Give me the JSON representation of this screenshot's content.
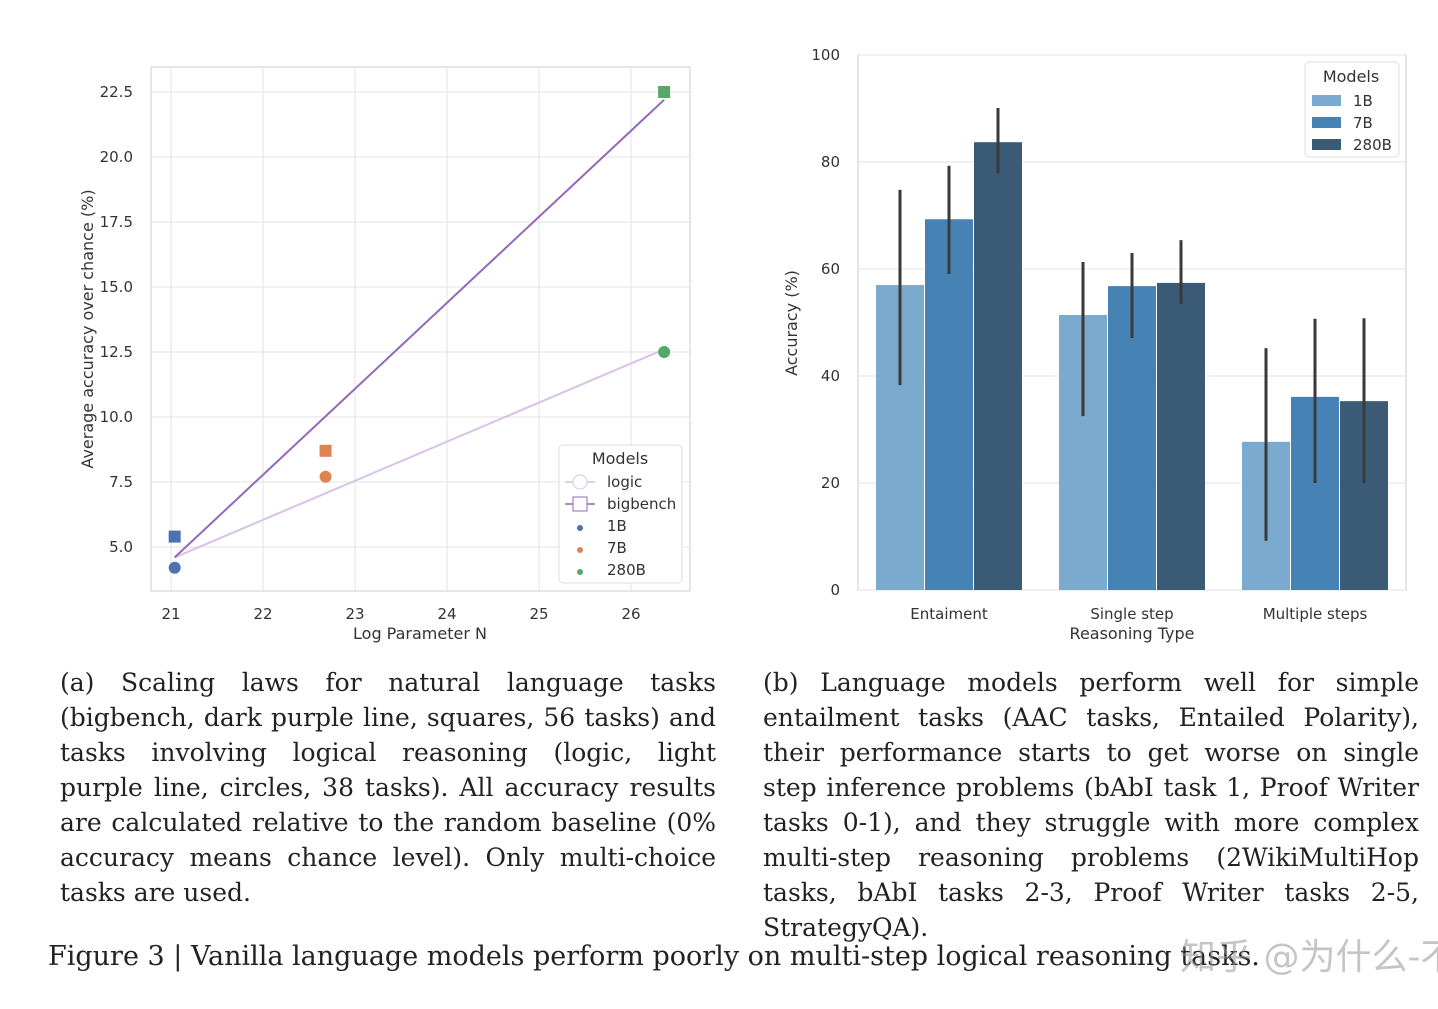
{
  "chart_data": [
    {
      "type": "scatter+line",
      "xlabel": "Log Parameter N",
      "ylabel": "Average accuracy over chance (%)",
      "xlim": [
        20.8,
        26.65
      ],
      "ylim": [
        3.2,
        23.4
      ],
      "xticks": [
        21,
        22,
        23,
        24,
        25,
        26
      ],
      "yticks": [
        "5.0",
        "7.5",
        "10.0",
        "12.5",
        "15.0",
        "17.5",
        "20.0",
        "22.5"
      ],
      "grid": true,
      "legend": {
        "title": "Models",
        "placement": "lower-right",
        "entries": [
          "logic",
          "bigbench",
          "1B",
          "7B",
          "280B"
        ]
      },
      "colors": {
        "1B": "#4c72b0",
        "7B": "#dd8452",
        "280B": "#55a868",
        "logic": "#d9c2e6",
        "bigbench": "#9467bd"
      },
      "points": [
        {
          "model": "1B",
          "task": "logic",
          "x": 21.04,
          "y": 4.2
        },
        {
          "model": "1B",
          "task": "bigbench",
          "x": 21.04,
          "y": 5.4
        },
        {
          "model": "7B",
          "task": "logic",
          "x": 22.68,
          "y": 7.7
        },
        {
          "model": "7B",
          "task": "bigbench",
          "x": 22.68,
          "y": 8.7
        },
        {
          "model": "280B",
          "task": "logic",
          "x": 26.36,
          "y": 12.5
        },
        {
          "model": "280B",
          "task": "bigbench",
          "x": 26.36,
          "y": 22.5
        }
      ],
      "lines": [
        {
          "name": "logic",
          "x": [
            21.04,
            26.36
          ],
          "y": [
            4.6,
            12.6
          ]
        },
        {
          "name": "bigbench",
          "x": [
            21.04,
            26.36
          ],
          "y": [
            4.6,
            22.2
          ]
        }
      ]
    },
    {
      "type": "bar",
      "xlabel": "Reasoning Type",
      "ylabel": "Accuracy (%)",
      "ylim": [
        0,
        100
      ],
      "yticks": [
        0,
        20,
        40,
        60,
        80,
        100
      ],
      "grid": true,
      "categories": [
        "Entaiment",
        "Single step",
        "Multiple steps"
      ],
      "legend": {
        "title": "Models",
        "placement": "top-right"
      },
      "series": [
        {
          "name": "1B",
          "color": "#7aaacd",
          "values": [
            57.0,
            51.4,
            27.7
          ],
          "err_low": [
            38.3,
            32.5,
            9.2
          ],
          "err_high": [
            74.8,
            61.3,
            45.2
          ]
        },
        {
          "name": "7B",
          "color": "#4682b4",
          "values": [
            69.3,
            56.8,
            36.1
          ],
          "err_low": [
            59.1,
            47.1,
            20.0
          ],
          "err_high": [
            79.3,
            63.0,
            50.7
          ]
        },
        {
          "name": "280B",
          "color": "#3a5a75",
          "values": [
            83.7,
            57.4,
            35.3
          ],
          "err_low": [
            77.9,
            53.5,
            20.0
          ],
          "err_high": [
            90.1,
            65.4,
            50.8
          ]
        }
      ]
    }
  ],
  "captions": {
    "a": "(a) Scaling laws for natural language tasks (bigbench, dark purple line, squares, 56 tasks) and tasks involving logical reasoning (logic, light purple line, circles, 38 tasks). All accuracy results are calculated relative to the random baseline (0% accuracy means chance level). Only multi-choice tasks are used.",
    "b": "(b) Language models perform well for simple entailment tasks (AAC tasks, Entailed Polarity), their performance starts to get worse on single step inference problems (bAbI task 1, Proof Writer tasks 0-1), and they struggle with more complex multi-step reasoning problems (2WikiMultiHop tasks, bAbI tasks 2-3, Proof Writer tasks 2-5, StrategyQA).",
    "figure": "Figure 3 | Vanilla language models perform poorly on multi-step logical reasoning tasks."
  },
  "watermark": "知乎 @为什么-不养猫"
}
